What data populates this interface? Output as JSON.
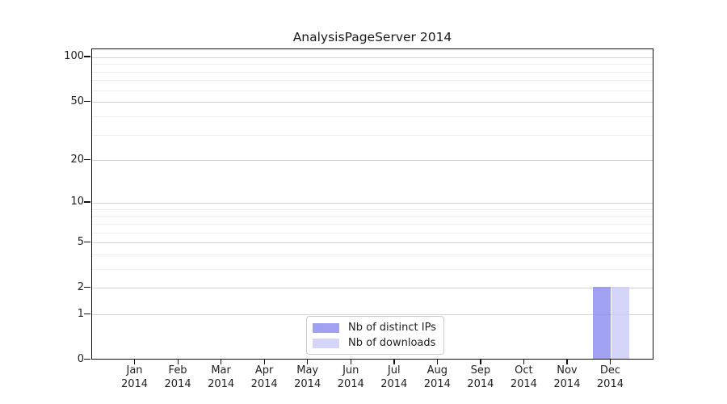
{
  "chart_data": {
    "type": "bar",
    "title": "AnalysisPageServer 2014",
    "categories": [
      {
        "label": "Jan",
        "sub": "2014"
      },
      {
        "label": "Feb",
        "sub": "2014"
      },
      {
        "label": "Mar",
        "sub": "2014"
      },
      {
        "label": "Apr",
        "sub": "2014"
      },
      {
        "label": "May",
        "sub": "2014"
      },
      {
        "label": "Jun",
        "sub": "2014"
      },
      {
        "label": "Jul",
        "sub": "2014"
      },
      {
        "label": "Aug",
        "sub": "2014"
      },
      {
        "label": "Sep",
        "sub": "2014"
      },
      {
        "label": "Oct",
        "sub": "2014"
      },
      {
        "label": "Nov",
        "sub": "2014"
      },
      {
        "label": "Dec",
        "sub": "2014"
      }
    ],
    "series": [
      {
        "name": "Nb of distinct IPs",
        "color": "#8c8cee",
        "alpha": 0.82,
        "values": [
          0,
          0,
          0,
          0,
          0,
          0,
          0,
          0,
          0,
          0,
          0,
          2
        ]
      },
      {
        "name": "Nb of downloads",
        "color": "#ccccf8",
        "alpha": 0.82,
        "values": [
          0,
          0,
          0,
          0,
          0,
          0,
          0,
          0,
          0,
          0,
          0,
          2
        ]
      }
    ],
    "yscale": "log1p",
    "ylim": [
      0,
      113
    ],
    "ytick_values": [
      0,
      1,
      2,
      5,
      10,
      20,
      50,
      100
    ],
    "ytick_labels": [
      "0",
      "1",
      "2",
      "5",
      "10",
      "20",
      "50",
      "100"
    ],
    "yminor_values": [
      3,
      4,
      6,
      7,
      8,
      9,
      30,
      40,
      60,
      70,
      80,
      90
    ],
    "grid": "on",
    "legend_position": "lower-center-inside",
    "xlabel": "",
    "ylabel": "",
    "colors": {
      "major_grid": "#d2d2d2",
      "minor_grid": "#efefef",
      "axis_frame": "#111111",
      "text": "#1f1f1f"
    }
  }
}
